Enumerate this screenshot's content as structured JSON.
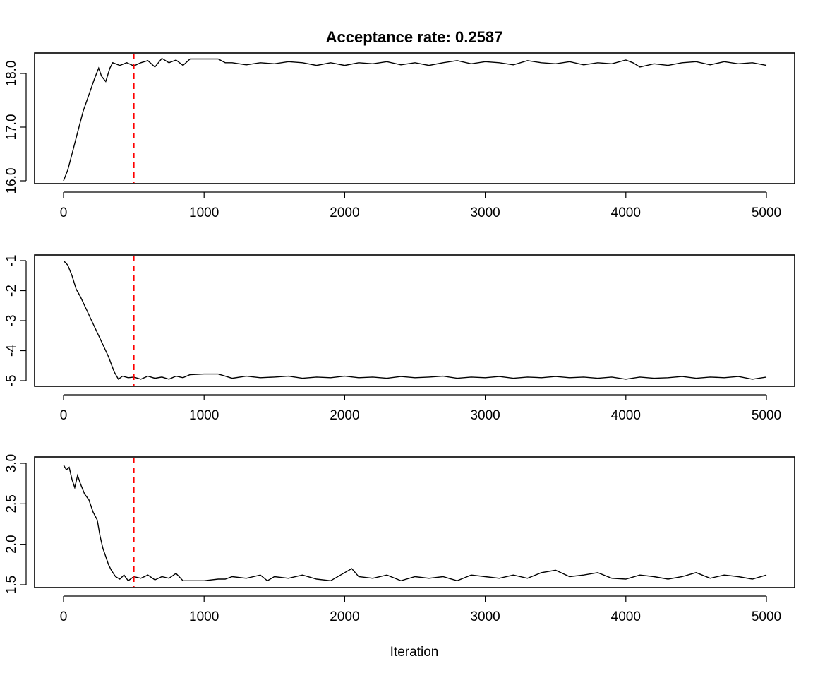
{
  "chart_data": {
    "type": "line",
    "title": "Acceptance rate: 0.2587",
    "xlabel": "Iteration",
    "burnin_line": {
      "x": 500,
      "color": "#ff0000",
      "style": "dashed"
    },
    "x_ticks": [
      0,
      1000,
      2000,
      3000,
      4000,
      5000
    ],
    "xlim": [
      0,
      5000
    ],
    "panels": [
      {
        "ylim": [
          15.95,
          18.3
        ],
        "y_ticks": [
          16.0,
          17.0,
          18.0
        ],
        "y_tick_labels": [
          "16.0",
          "17.0",
          "18.0"
        ],
        "series": [
          {
            "x": [
              0,
              30,
              60,
              100,
              140,
              180,
              220,
              250,
              270,
              300,
              330,
              350,
              370,
              400,
              450,
              500,
              550,
              600,
              650,
              700,
              750,
              800,
              850,
              900,
              1000,
              1100,
              1150,
              1200,
              1300,
              1400,
              1500,
              1600,
              1700,
              1800,
              1900,
              2000,
              2100,
              2200,
              2300,
              2400,
              2500,
              2600,
              2700,
              2800,
              2900,
              3000,
              3100,
              3200,
              3300,
              3400,
              3500,
              3600,
              3700,
              3800,
              3900,
              4000,
              4050,
              4100,
              4200,
              4300,
              4400,
              4500,
              4600,
              4700,
              4800,
              4900,
              5000
            ],
            "y": [
              16.0,
              16.2,
              16.5,
              16.9,
              17.3,
              17.6,
              17.9,
              18.1,
              17.95,
              17.85,
              18.1,
              18.2,
              18.18,
              18.15,
              18.2,
              18.14,
              18.2,
              18.24,
              18.12,
              18.28,
              18.2,
              18.25,
              18.15,
              18.27,
              18.27,
              18.27,
              18.2,
              18.2,
              18.16,
              18.2,
              18.18,
              18.22,
              18.2,
              18.15,
              18.2,
              18.15,
              18.2,
              18.18,
              18.22,
              18.16,
              18.2,
              18.15,
              18.2,
              18.24,
              18.18,
              18.22,
              18.2,
              18.16,
              18.24,
              18.2,
              18.18,
              18.22,
              18.16,
              18.2,
              18.18,
              18.25,
              18.2,
              18.12,
              18.18,
              18.15,
              18.2,
              18.22,
              18.16,
              18.22,
              18.18,
              18.2,
              18.15
            ]
          }
        ]
      },
      {
        "ylim": [
          -5.15,
          -0.9
        ],
        "y_ticks": [
          -5,
          -4,
          -3,
          -2,
          -1
        ],
        "y_tick_labels": [
          "-5",
          "-4",
          "-3",
          "-2",
          "-1"
        ],
        "series": [
          {
            "x": [
              0,
              30,
              60,
              90,
              120,
              160,
              200,
              240,
              280,
              320,
              360,
              390,
              420,
              460,
              500,
              550,
              600,
              650,
              700,
              750,
              800,
              850,
              900,
              1000,
              1100,
              1150,
              1200,
              1300,
              1400,
              1500,
              1600,
              1700,
              1800,
              1900,
              2000,
              2100,
              2200,
              2300,
              2400,
              2500,
              2600,
              2700,
              2800,
              2900,
              3000,
              3100,
              3200,
              3300,
              3400,
              3500,
              3600,
              3700,
              3800,
              3900,
              4000,
              4100,
              4200,
              4300,
              4400,
              4500,
              4600,
              4700,
              4800,
              4900,
              5000
            ],
            "y": [
              -1.0,
              -1.15,
              -1.5,
              -1.95,
              -2.2,
              -2.6,
              -3.0,
              -3.4,
              -3.8,
              -4.2,
              -4.7,
              -4.95,
              -4.85,
              -4.9,
              -4.88,
              -4.95,
              -4.85,
              -4.92,
              -4.88,
              -4.95,
              -4.85,
              -4.9,
              -4.8,
              -4.78,
              -4.78,
              -4.85,
              -4.92,
              -4.85,
              -4.9,
              -4.88,
              -4.85,
              -4.92,
              -4.88,
              -4.9,
              -4.85,
              -4.9,
              -4.88,
              -4.92,
              -4.86,
              -4.9,
              -4.88,
              -4.85,
              -4.92,
              -4.88,
              -4.9,
              -4.86,
              -4.92,
              -4.88,
              -4.9,
              -4.86,
              -4.9,
              -4.88,
              -4.92,
              -4.88,
              -4.95,
              -4.88,
              -4.92,
              -4.9,
              -4.86,
              -4.92,
              -4.88,
              -4.9,
              -4.86,
              -4.95,
              -4.88
            ]
          }
        ]
      },
      {
        "ylim": [
          1.48,
          3.05
        ],
        "y_ticks": [
          1.5,
          2.0,
          2.5,
          3.0
        ],
        "y_tick_labels": [
          "1.5",
          "2.0",
          "2.5",
          "3.0"
        ],
        "series": [
          {
            "x": [
              0,
              20,
              40,
              60,
              80,
              100,
              120,
              150,
              180,
              210,
              240,
              260,
              280,
              300,
              320,
              340,
              370,
              400,
              430,
              460,
              500,
              550,
              600,
              650,
              700,
              750,
              800,
              850,
              900,
              1000,
              1100,
              1150,
              1200,
              1300,
              1400,
              1450,
              1500,
              1600,
              1700,
              1800,
              1900,
              2000,
              2050,
              2100,
              2200,
              2300,
              2400,
              2500,
              2600,
              2700,
              2800,
              2900,
              3000,
              3100,
              3200,
              3300,
              3400,
              3500,
              3600,
              3700,
              3800,
              3900,
              4000,
              4100,
              4200,
              4300,
              4400,
              4500,
              4600,
              4700,
              4800,
              4900,
              5000
            ],
            "y": [
              2.98,
              2.92,
              2.95,
              2.8,
              2.7,
              2.85,
              2.75,
              2.62,
              2.55,
              2.4,
              2.3,
              2.1,
              1.95,
              1.85,
              1.75,
              1.68,
              1.6,
              1.57,
              1.62,
              1.55,
              1.6,
              1.58,
              1.62,
              1.56,
              1.6,
              1.58,
              1.64,
              1.55,
              1.55,
              1.55,
              1.57,
              1.57,
              1.6,
              1.58,
              1.62,
              1.55,
              1.6,
              1.58,
              1.62,
              1.57,
              1.55,
              1.65,
              1.7,
              1.6,
              1.58,
              1.62,
              1.55,
              1.6,
              1.58,
              1.6,
              1.55,
              1.62,
              1.6,
              1.58,
              1.62,
              1.58,
              1.65,
              1.68,
              1.6,
              1.62,
              1.65,
              1.58,
              1.57,
              1.62,
              1.6,
              1.57,
              1.6,
              1.65,
              1.58,
              1.62,
              1.6,
              1.57,
              1.62
            ]
          }
        ]
      }
    ]
  }
}
